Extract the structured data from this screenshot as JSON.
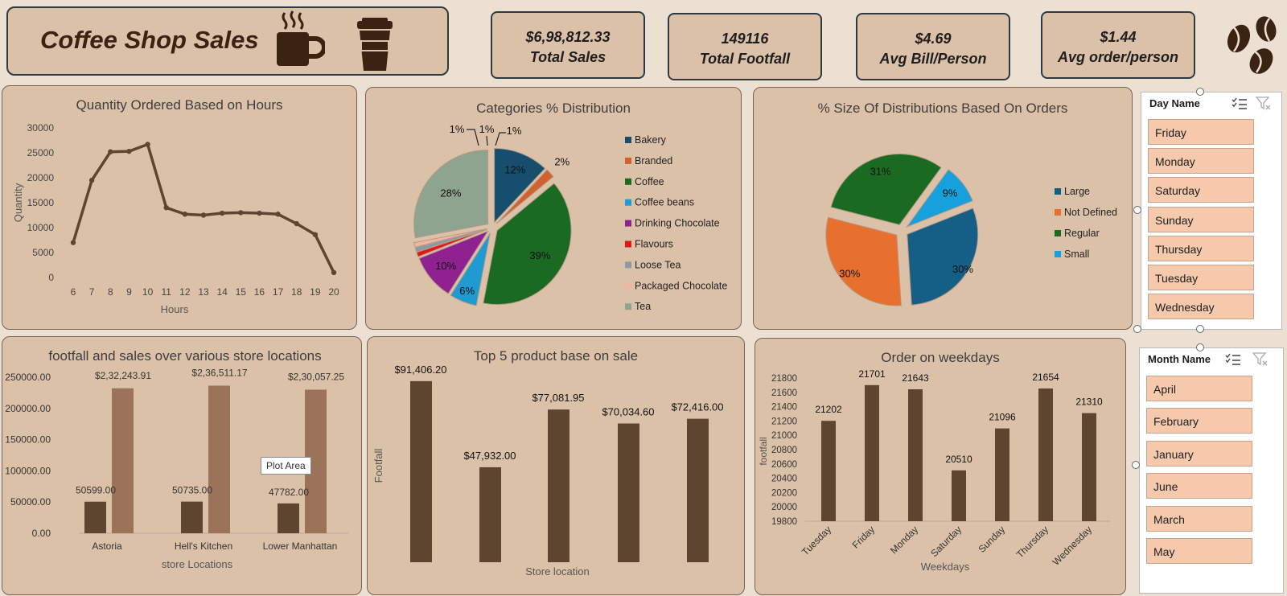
{
  "header": {
    "title": "Coffee Shop Sales"
  },
  "kpis": [
    {
      "value": "$6,98,812.33",
      "label": "Total Sales"
    },
    {
      "value": "149116",
      "label": "Total Footfall"
    },
    {
      "value": "$4.69",
      "label": "Avg Bill/Person"
    },
    {
      "value": "$1.44",
      "label": "Avg order/person"
    }
  ],
  "slicers": {
    "day": {
      "title": "Day Name",
      "items": [
        "Friday",
        "Monday",
        "Saturday",
        "Sunday",
        "Thursday",
        "Tuesday",
        "Wednesday"
      ]
    },
    "month": {
      "title": "Month Name",
      "items": [
        "April",
        "February",
        "January",
        "June",
        "March",
        "May"
      ]
    }
  },
  "tooltip": "Plot Area",
  "colors": {
    "brown_dark": "#5e4530",
    "brown_light": "#9a7358",
    "line": "#5e4530"
  },
  "chart_data": [
    {
      "type": "line",
      "title": "Quantity Ordered Based on Hours",
      "xlabel": "Hours",
      "ylabel": "Quantity",
      "x": [
        6,
        7,
        8,
        9,
        10,
        11,
        12,
        13,
        14,
        15,
        16,
        17,
        18,
        19,
        20
      ],
      "values": [
        7000,
        19500,
        25200,
        25300,
        26700,
        14000,
        12700,
        12500,
        12900,
        13000,
        12900,
        12700,
        10800,
        8600,
        1000
      ],
      "ylim": [
        0,
        30000
      ],
      "yticks": [
        0,
        5000,
        10000,
        15000,
        20000,
        25000,
        30000
      ]
    },
    {
      "type": "pie",
      "title": "Categories %  Distribution",
      "categories": [
        "Bakery",
        "Branded",
        "Coffee",
        "Coffee beans",
        "Drinking Chocolate",
        "Flavours",
        "Loose Tea",
        "Packaged Chocolate",
        "Tea"
      ],
      "values": [
        12,
        2,
        39,
        6,
        10,
        1,
        1,
        1,
        28
      ],
      "labels": [
        "12%",
        "2%",
        "39%",
        "6%",
        "10%",
        "1%",
        "1%",
        "1%",
        "28%"
      ],
      "colors": [
        "#174e6e",
        "#d0622d",
        "#1b6a22",
        "#1f9bd2",
        "#8f2290",
        "#e01818",
        "#8b9aa6",
        "#f1b6a0",
        "#8ea48e"
      ],
      "legend": "right"
    },
    {
      "type": "pie",
      "title": "% Size Of Distributions Based On Orders",
      "categories": [
        "Large",
        "Not Defined",
        "Regular",
        "Small"
      ],
      "values": [
        30,
        30,
        31,
        9
      ],
      "labels": [
        "30%",
        "30%",
        "31%",
        "9%"
      ],
      "colors": [
        "#155e85",
        "#e8702e",
        "#1b6a22",
        "#16a1dc"
      ],
      "legend": "right"
    },
    {
      "type": "bar",
      "title": "footfall and sales over various store locations",
      "xlabel": "store Locations",
      "categories": [
        "Astoria",
        "Hell's Kitchen",
        "Lower Manhattan"
      ],
      "series": [
        {
          "values": [
            50599.0,
            50735.0,
            47782.0
          ],
          "labels": [
            "50599.00",
            "50735.00",
            "47782.00"
          ]
        },
        {
          "values": [
            232243.91,
            236511.17,
            230057.25
          ],
          "labels": [
            "$2,32,243.91",
            "$2,36,511.17",
            "$2,30,057.25"
          ]
        }
      ],
      "ylim": [
        0,
        250000
      ],
      "yticks": [
        "0.00",
        "50000.00",
        "100000.00",
        "150000.00",
        "200000.00",
        "250000.00"
      ]
    },
    {
      "type": "bar",
      "title": "Top 5 product base on sale",
      "xlabel": "Store location",
      "ylabel": "Footfall",
      "values": [
        91406.2,
        47932.0,
        77081.95,
        70034.6,
        72416.0
      ],
      "labels": [
        "$91,406.20",
        "$47,932.00",
        "$77,081.95",
        "$70,034.60",
        "$72,416.00"
      ],
      "ylim": [
        0,
        95000
      ]
    },
    {
      "type": "bar",
      "title": "Order on weekdays",
      "xlabel": "Weekdays",
      "ylabel": "footfall",
      "categories": [
        "Tuesday",
        "Friday",
        "Monday",
        "Saturday",
        "Sunday",
        "Thursday",
        "Wednesday"
      ],
      "values": [
        21202,
        21701,
        21643,
        20510,
        21096,
        21654,
        21310
      ],
      "ylim": [
        19800,
        21800
      ],
      "yticks": [
        19800,
        20000,
        20200,
        20400,
        20600,
        20800,
        21000,
        21200,
        21400,
        21600,
        21800
      ]
    }
  ]
}
